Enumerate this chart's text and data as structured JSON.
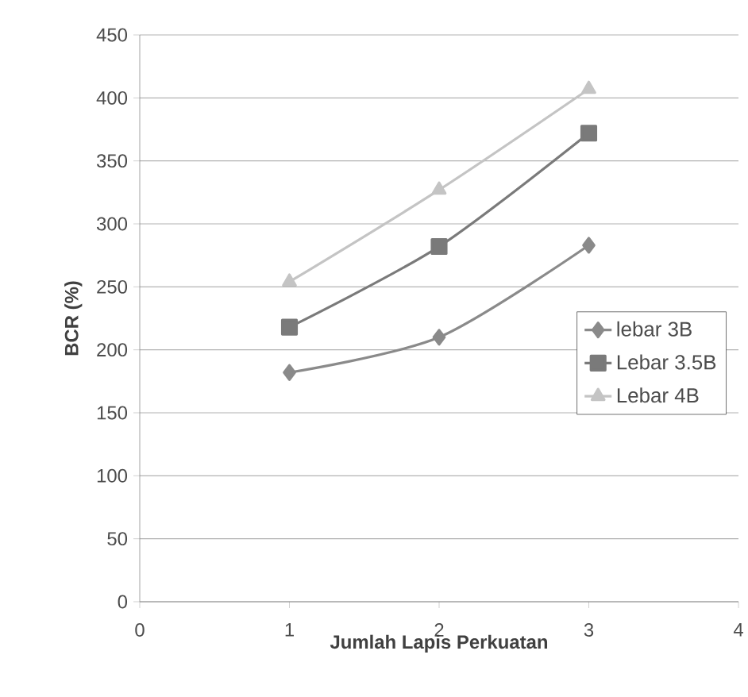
{
  "chart_data": {
    "type": "line",
    "xlabel": "Jumlah Lapis Perkuatan",
    "ylabel": "BCR (%)",
    "x": [
      1,
      2,
      3
    ],
    "xlim": [
      0,
      4
    ],
    "xticks": [
      0,
      1,
      2,
      3,
      4
    ],
    "ylim": [
      0,
      450
    ],
    "yticks": [
      0,
      50,
      100,
      150,
      200,
      250,
      300,
      350,
      400,
      450
    ],
    "grid": "y",
    "legend": "right",
    "line_style": "solid",
    "series": [
      {
        "name": "lebar 3B",
        "color": "#8a8a8a",
        "marker": "diamond",
        "values": [
          182,
          210,
          283
        ]
      },
      {
        "name": "Lebar 3.5B",
        "color": "#7a7a7a",
        "marker": "square",
        "values": [
          218,
          282,
          372
        ]
      },
      {
        "name": "Lebar 4B",
        "color": "#c4c4c4",
        "marker": "triangle",
        "values": [
          254,
          327,
          407
        ]
      }
    ]
  }
}
